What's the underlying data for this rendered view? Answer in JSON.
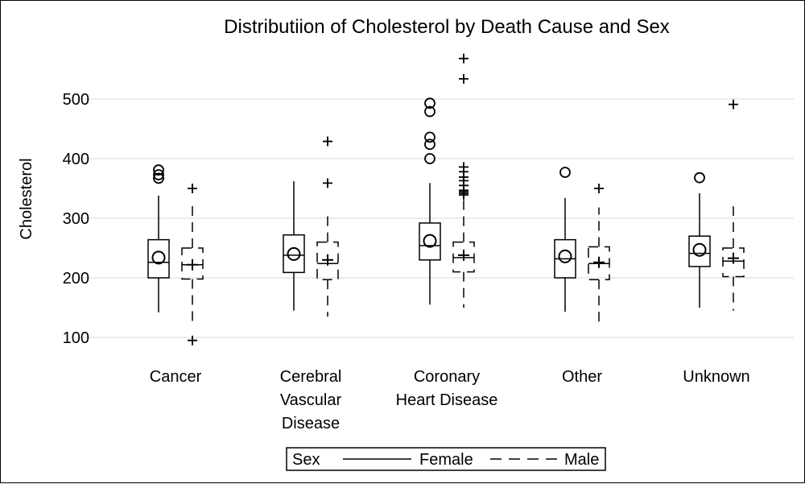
{
  "chart_data": {
    "type": "box",
    "title": "Distributiion of Cholesterol by Death Cause and Sex",
    "xlabel": "",
    "ylabel": "Cholesterol",
    "ylim": [
      80,
      580
    ],
    "yticks": [
      100,
      200,
      300,
      400,
      500
    ],
    "grid": true,
    "legend": {
      "title": "Sex",
      "placement": "bottom-center"
    },
    "categories": [
      {
        "label_lines": [
          "Cancer"
        ]
      },
      {
        "label_lines": [
          "Cerebral",
          "Vascular",
          "Disease"
        ]
      },
      {
        "label_lines": [
          "Coronary",
          "Heart Disease"
        ]
      },
      {
        "label_lines": [
          "Other"
        ]
      },
      {
        "label_lines": [
          "Unknown"
        ]
      }
    ],
    "series": [
      {
        "name": "Female",
        "line_style": "solid",
        "outlier_marker": "circle",
        "boxes": [
          {
            "category": "Cancer",
            "whisker_low": 142,
            "q1": 200,
            "median": 226,
            "q3": 264,
            "whisker_high": 338,
            "mean": 234,
            "outliers": [
              367,
              373,
              381
            ]
          },
          {
            "category": "Cerebral Vascular Disease",
            "whisker_low": 145,
            "q1": 209,
            "median": 238,
            "q3": 272,
            "whisker_high": 362,
            "mean": 240,
            "outliers": []
          },
          {
            "category": "Coronary Heart Disease",
            "whisker_low": 155,
            "q1": 230,
            "median": 254,
            "q3": 292,
            "whisker_high": 359,
            "mean": 262,
            "outliers": [
              400,
              424,
              436,
              479,
              493
            ]
          },
          {
            "category": "Other",
            "whisker_low": 143,
            "q1": 200,
            "median": 232,
            "q3": 264,
            "whisker_high": 334,
            "mean": 236,
            "outliers": [
              377
            ]
          },
          {
            "category": "Unknown",
            "whisker_low": 150,
            "q1": 219,
            "median": 241,
            "q3": 270,
            "whisker_high": 342,
            "mean": 247,
            "outliers": [
              368
            ]
          }
        ]
      },
      {
        "name": "Male",
        "line_style": "dashed",
        "outlier_marker": "plus",
        "boxes": [
          {
            "category": "Cancer",
            "whisker_low": 124,
            "q1": 198,
            "median": 222,
            "q3": 250,
            "whisker_high": 325,
            "mean": 222,
            "outliers": [
              95,
              350
            ]
          },
          {
            "category": "Cerebral Vascular Disease",
            "whisker_low": 135,
            "q1": 197,
            "median": 224,
            "q3": 260,
            "whisker_high": 309,
            "mean": 230,
            "outliers": [
              359,
              429
            ]
          },
          {
            "category": "Coronary Heart Disease",
            "whisker_low": 150,
            "q1": 210,
            "median": 234,
            "q3": 260,
            "whisker_high": 335,
            "mean": 238,
            "outliers": [
              339,
              342,
              345,
              347,
              355,
              363,
              369,
              378,
              386,
              534,
              568
            ]
          },
          {
            "category": "Other",
            "whisker_low": 124,
            "q1": 197,
            "median": 224,
            "q3": 252,
            "whisker_high": 318,
            "mean": 226,
            "outliers": [
              350
            ]
          },
          {
            "category": "Unknown",
            "whisker_low": 145,
            "q1": 202,
            "median": 228,
            "q3": 250,
            "whisker_high": 320,
            "mean": 233,
            "outliers": [
              491
            ]
          }
        ]
      }
    ]
  }
}
